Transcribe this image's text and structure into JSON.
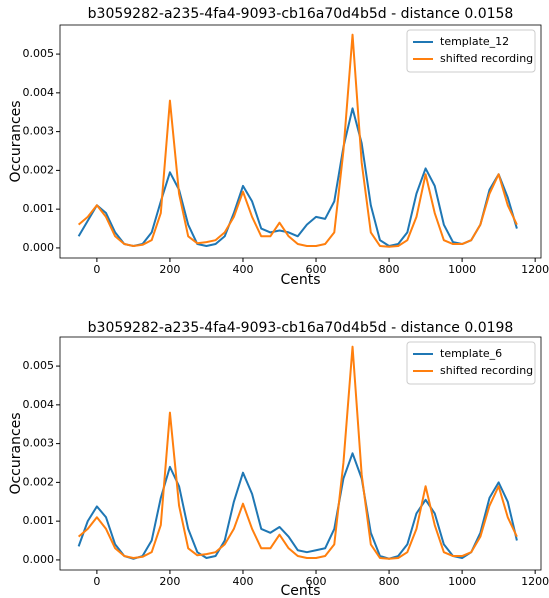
{
  "chart_data": [
    {
      "type": "line",
      "title": "b3059282-a235-4fa4-9093-cb16a70d4b5d - distance 0.0158",
      "xlabel": "Cents",
      "ylabel": "Occurances",
      "x": [
        -50,
        -25,
        0,
        25,
        50,
        75,
        100,
        125,
        150,
        175,
        200,
        225,
        250,
        275,
        300,
        325,
        350,
        375,
        400,
        425,
        450,
        475,
        500,
        525,
        550,
        575,
        600,
        625,
        650,
        675,
        700,
        725,
        750,
        775,
        800,
        825,
        850,
        875,
        900,
        925,
        950,
        975,
        1000,
        1025,
        1050,
        1075,
        1100,
        1125,
        1150
      ],
      "series": [
        {
          "name": "template_12",
          "color": "#1f77b4",
          "values": [
            0.0003,
            0.0007,
            0.0011,
            0.0009,
            0.0004,
            0.0001,
            5e-05,
            0.0001,
            0.0004,
            0.0012,
            0.00195,
            0.0015,
            0.0006,
            0.0001,
            5e-05,
            0.0001,
            0.0003,
            0.0009,
            0.0016,
            0.0012,
            0.0005,
            0.0004,
            0.00045,
            0.0004,
            0.0003,
            0.0006,
            0.0008,
            0.00075,
            0.0012,
            0.0026,
            0.0036,
            0.0027,
            0.0011,
            0.0002,
            5e-05,
            0.0001,
            0.0004,
            0.0014,
            0.00205,
            0.0016,
            0.0006,
            0.00015,
            0.0001,
            0.0002,
            0.0006,
            0.0015,
            0.0019,
            0.0013,
            0.0005
          ]
        },
        {
          "name": "shifted recording",
          "color": "#ff7f0e",
          "values": [
            0.0006,
            0.0008,
            0.0011,
            0.0008,
            0.0003,
            0.0001,
            5e-05,
            8e-05,
            0.0002,
            0.0009,
            0.0038,
            0.0014,
            0.0003,
            0.00012,
            0.00015,
            0.0002,
            0.0004,
            0.0008,
            0.00145,
            0.0008,
            0.0003,
            0.0003,
            0.00065,
            0.0003,
            0.0001,
            5e-05,
            5e-05,
            0.0001,
            0.0004,
            0.0025,
            0.0055,
            0.0022,
            0.0004,
            5e-05,
            3e-05,
            5e-05,
            0.0002,
            0.0008,
            0.0019,
            0.0009,
            0.0002,
            0.0001,
            0.0001,
            0.0002,
            0.0006,
            0.0014,
            0.0019,
            0.0011,
            0.0006
          ]
        }
      ],
      "xlim": [
        -101,
        1216
      ],
      "ylim": [
        -0.00026,
        0.00575
      ],
      "xticks": [
        0,
        200,
        400,
        600,
        800,
        1000,
        1200
      ],
      "yticks": [
        {
          "value": 0,
          "label": "0.000"
        },
        {
          "value": 0.001,
          "label": "0.001"
        },
        {
          "value": 0.002,
          "label": "0.002"
        },
        {
          "value": 0.003,
          "label": "0.003"
        },
        {
          "value": 0.004,
          "label": "0.004"
        },
        {
          "value": 0.005,
          "label": "0.005"
        }
      ],
      "grid": false,
      "legend": "upper right"
    },
    {
      "type": "line",
      "title": "b3059282-a235-4fa4-9093-cb16a70d4b5d - distance 0.0198",
      "xlabel": "Cents",
      "ylabel": "Occurances",
      "x": [
        -50,
        -25,
        0,
        25,
        50,
        75,
        100,
        125,
        150,
        175,
        200,
        225,
        250,
        275,
        300,
        325,
        350,
        375,
        400,
        425,
        450,
        475,
        500,
        525,
        550,
        575,
        600,
        625,
        650,
        675,
        700,
        725,
        750,
        775,
        800,
        825,
        850,
        875,
        900,
        925,
        950,
        975,
        1000,
        1025,
        1050,
        1075,
        1100,
        1125,
        1150
      ],
      "series": [
        {
          "name": "template_6",
          "color": "#1f77b4",
          "values": [
            0.00035,
            0.001,
            0.00138,
            0.0011,
            0.0004,
            0.0001,
            3e-05,
            0.0001,
            0.0005,
            0.0016,
            0.0024,
            0.0019,
            0.0008,
            0.0002,
            5e-05,
            0.0001,
            0.0005,
            0.0015,
            0.00225,
            0.0017,
            0.0008,
            0.0007,
            0.00085,
            0.0006,
            0.00025,
            0.0002,
            0.00025,
            0.0003,
            0.0008,
            0.0021,
            0.00275,
            0.0021,
            0.0007,
            0.0001,
            3e-05,
            0.0001,
            0.0004,
            0.0012,
            0.00155,
            0.0012,
            0.0004,
            0.0001,
            5e-05,
            0.0002,
            0.0007,
            0.0016,
            0.002,
            0.0015,
            0.0005
          ]
        },
        {
          "name": "shifted recording",
          "color": "#ff7f0e",
          "values": [
            0.0006,
            0.0008,
            0.0011,
            0.0008,
            0.0003,
            0.0001,
            5e-05,
            8e-05,
            0.0002,
            0.0009,
            0.0038,
            0.0014,
            0.0003,
            0.00012,
            0.00015,
            0.0002,
            0.0004,
            0.0008,
            0.00145,
            0.0008,
            0.0003,
            0.0003,
            0.00065,
            0.0003,
            0.0001,
            5e-05,
            5e-05,
            0.0001,
            0.0004,
            0.0025,
            0.0055,
            0.0022,
            0.0004,
            5e-05,
            3e-05,
            5e-05,
            0.0002,
            0.0008,
            0.0019,
            0.0009,
            0.0002,
            0.0001,
            0.0001,
            0.0002,
            0.0006,
            0.0014,
            0.0019,
            0.0011,
            0.0006
          ]
        }
      ],
      "xlim": [
        -101,
        1216
      ],
      "ylim": [
        -0.00026,
        0.00575
      ],
      "xticks": [
        0,
        200,
        400,
        600,
        800,
        1000,
        1200
      ],
      "yticks": [
        {
          "value": 0,
          "label": "0.000"
        },
        {
          "value": 0.001,
          "label": "0.001"
        },
        {
          "value": 0.002,
          "label": "0.002"
        },
        {
          "value": 0.003,
          "label": "0.003"
        },
        {
          "value": 0.004,
          "label": "0.004"
        },
        {
          "value": 0.005,
          "label": "0.005"
        }
      ],
      "grid": false,
      "legend": "upper right"
    }
  ]
}
